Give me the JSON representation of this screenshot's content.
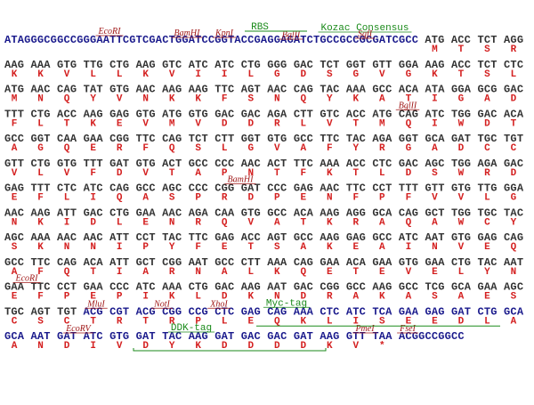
{
  "lines": [
    {
      "dna": [
        {
          "text": "ATAGGGCGGCCGGGAATTCGTCGACTGGATCCGGTACCGAGGAGATCTGCCGCCGCGATCGCC",
          "color": "#1a1a8c"
        },
        {
          "text": " ATG ACC TCT AGG",
          "color": "#333333"
        }
      ],
      "aa": [
        "M",
        "T",
        "S",
        "R"
      ],
      "labels": [
        "EcoRI",
        "BamHI",
        "KpnI",
        "RBS",
        "BglII",
        "Kozac Consensus",
        "SgfI"
      ]
    },
    {
      "dna": [
        {
          "text": "AAG AAA GTG TTG CTG AAG GTC ATC ATC CTG GGG GAC TCT GGT GTT GGA AAG ACC TCT CTC",
          "color": "#333333"
        }
      ],
      "aa": [
        "K",
        "K",
        "V",
        "L",
        "L",
        "K",
        "V",
        "I",
        "I",
        "L",
        "G",
        "D",
        "S",
        "G",
        "V",
        "G",
        "K",
        "T",
        "S",
        "L"
      ],
      "labels": []
    },
    {
      "dna": [
        {
          "text": "ATG AAC CAG TAT GTG AAC AAG AAG TTC AGT AAC CAG TAC AAA GCC ACA ATA GGA GCG GAC",
          "color": "#333333"
        }
      ],
      "aa": [
        "M",
        "N",
        "Q",
        "Y",
        "V",
        "N",
        "K",
        "K",
        "F",
        "S",
        "N",
        "Q",
        "Y",
        "K",
        "A",
        "T",
        "I",
        "G",
        "A",
        "D"
      ],
      "labels": []
    },
    {
      "dna": [
        {
          "text": "TTT CTG ACC AAG GAG GTG ATG GTG GAC GAC AGA CTT GTC ACC ATG CAG ATC TGG GAC ACA",
          "color": "#333333"
        }
      ],
      "aa": [
        "F",
        "L",
        "T",
        "K",
        "E",
        "V",
        "M",
        "V",
        "D",
        "D",
        "R",
        "L",
        "V",
        "T",
        "M",
        "Q",
        "I",
        "W",
        "D",
        "T"
      ],
      "labels": [
        "BglII"
      ]
    },
    {
      "dna": [
        {
          "text": "GCC GGT CAA GAA CGG TTC CAG TCT CTT GGT GTG GCC TTC TAC AGA GGT GCA GAT TGC TGT",
          "color": "#333333"
        }
      ],
      "aa": [
        "A",
        "G",
        "Q",
        "E",
        "R",
        "F",
        "Q",
        "S",
        "L",
        "G",
        "V",
        "A",
        "F",
        "Y",
        "R",
        "G",
        "A",
        "D",
        "C",
        "C"
      ],
      "labels": []
    },
    {
      "dna": [
        {
          "text": "GTT CTG GTG TTT GAT GTG ACT GCC CCC AAC ACT TTC AAA ACC CTC GAC AGC TGG AGA GAC",
          "color": "#333333"
        }
      ],
      "aa": [
        "V",
        "L",
        "V",
        "F",
        "D",
        "V",
        "T",
        "A",
        "P",
        "N",
        "T",
        "F",
        "K",
        "T",
        "L",
        "D",
        "S",
        "W",
        "R",
        "D"
      ],
      "labels": []
    },
    {
      "dna": [
        {
          "text": "GAG TTT CTC ATC CAG GCC AGC CCC CGG GAT CCC GAG AAC TTC CCT TTT GTT GTG TTG GGA",
          "color": "#333333"
        }
      ],
      "aa": [
        "E",
        "F",
        "L",
        "I",
        "Q",
        "A",
        "S",
        "P",
        "R",
        "D",
        "P",
        "E",
        "N",
        "F",
        "P",
        "F",
        "V",
        "V",
        "L",
        "G"
      ],
      "labels": [
        "BamHI"
      ]
    },
    {
      "dna": [
        {
          "text": "AAC AAG ATT GAC CTG GAA AAC AGA CAA GTG GCC ACA AAG AGG GCA CAG GCT TGG TGC TAC",
          "color": "#333333"
        }
      ],
      "aa": [
        "N",
        "K",
        "I",
        "D",
        "L",
        "E",
        "N",
        "R",
        "Q",
        "V",
        "A",
        "T",
        "K",
        "R",
        "A",
        "Q",
        "A",
        "W",
        "C",
        "Y"
      ],
      "labels": []
    },
    {
      "dna": [
        {
          "text": "AGC AAA AAC AAC ATT CCT TAC TTC GAG ACC AGT GCC AAG GAG GCC ATC AAT GTG GAG CAG",
          "color": "#333333"
        }
      ],
      "aa": [
        "S",
        "K",
        "N",
        "N",
        "I",
        "P",
        "Y",
        "F",
        "E",
        "T",
        "S",
        "A",
        "K",
        "E",
        "A",
        "I",
        "N",
        "V",
        "E",
        "Q"
      ],
      "labels": []
    },
    {
      "dna": [
        {
          "text": "GCC TTC CAG ACA ATT GCT CGG AAT GCC CTT AAA CAG GAA ACA GAA GTG GAA CTG TAC AAT",
          "color": "#333333"
        }
      ],
      "aa": [
        "A",
        "F",
        "Q",
        "T",
        "I",
        "A",
        "R",
        "N",
        "A",
        "L",
        "K",
        "Q",
        "E",
        "T",
        "E",
        "V",
        "E",
        "L",
        "Y",
        "N"
      ],
      "labels": []
    },
    {
      "dna": [
        {
          "text": "GAA TTC CCT GAA CCC ATC AAA CTG GAC AAG AAT GAC CGG GCC AAG GCC TCG GCA GAA AGC",
          "color": "#333333"
        }
      ],
      "aa": [
        "E",
        "F",
        "P",
        "E",
        "P",
        "I",
        "K",
        "L",
        "D",
        "K",
        "N",
        "D",
        "R",
        "A",
        "K",
        "A",
        "S",
        "A",
        "E",
        "S"
      ],
      "labels": [
        "EcoRI"
      ]
    },
    {
      "dna": [
        {
          "text": "TGC AGT TGT ",
          "color": "#333333"
        },
        {
          "text": "ACG CGT ACG CGG CCG CTC GAG CAG AAA CTC ATC TCA GAA GAG GAT CTG GCA",
          "color": "#1a1a8c"
        }
      ],
      "aa": [
        "C",
        "S",
        "C",
        "T",
        "R",
        "T",
        "R",
        "P",
        "L",
        "E",
        "Q",
        "K",
        "L",
        "I",
        "S",
        "E",
        "E",
        "D",
        "L",
        "A"
      ],
      "labels": [
        "MluI",
        "NotI",
        "XhoI",
        "Myc-tag"
      ]
    },
    {
      "dna": [
        {
          "text": "GCA AAT GAT ATC GTG GAT TAC AAG GAT GAC GAC GAT AAG GTT TAA ACGGCCGGCC",
          "color": "#1a1a8c"
        }
      ],
      "aa": [
        "A",
        "N",
        "D",
        "I",
        "V",
        "D",
        "Y",
        "K",
        "D",
        "D",
        "D",
        "D",
        "K",
        "V",
        "*"
      ],
      "labels": [
        "EcoRV",
        "DDK-tag",
        "PmeI",
        "FseI"
      ]
    }
  ]
}
